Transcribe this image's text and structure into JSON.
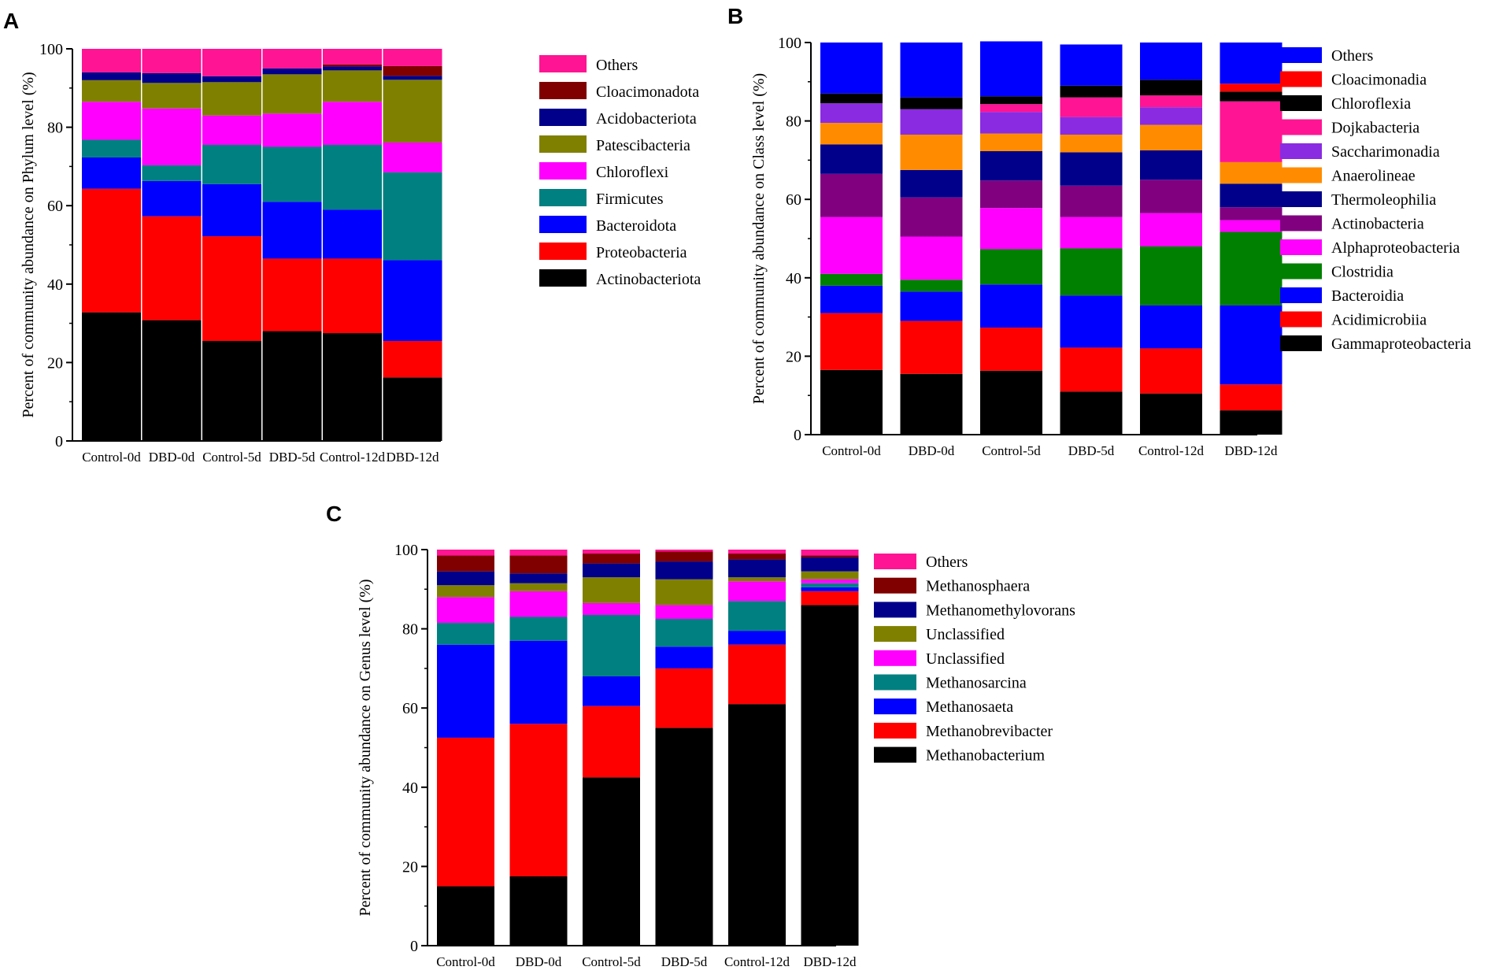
{
  "chart_data": [
    {
      "panel": "A",
      "type": "stacked-bar",
      "ylabel": "Percent of community abundance on Phylum level (%)",
      "ylim": [
        0,
        100
      ],
      "yticks": [
        0,
        20,
        40,
        60,
        80,
        100
      ],
      "categories": [
        "Control-0d",
        "DBD-0d",
        "Control-5d",
        "DBD-5d",
        "Control-12d",
        "DBD-12d"
      ],
      "series": [
        {
          "name": "Actinobacteriota",
          "color": "#000000",
          "values": [
            32.8,
            30.8,
            25.5,
            28.0,
            27.5,
            16.2
          ]
        },
        {
          "name": "Proteobacteria",
          "color": "#ff0000",
          "values": [
            31.5,
            26.5,
            26.7,
            18.5,
            19.0,
            9.3
          ]
        },
        {
          "name": "Bacteroidota",
          "color": "#0000ff",
          "values": [
            8.0,
            9.0,
            13.3,
            14.5,
            12.5,
            20.6
          ]
        },
        {
          "name": "Firmicutes",
          "color": "#008080",
          "values": [
            4.5,
            4.0,
            10.0,
            14.0,
            16.5,
            22.4
          ]
        },
        {
          "name": "Chloroflexi",
          "color": "#ff00ff",
          "values": [
            9.7,
            14.5,
            7.5,
            8.5,
            11.0,
            7.6
          ]
        },
        {
          "name": "Patescibacteria",
          "color": "#808000",
          "values": [
            5.5,
            6.5,
            8.5,
            10.0,
            8.0,
            16.0
          ]
        },
        {
          "name": "Acidobacteriota",
          "color": "#00008b",
          "values": [
            2.0,
            2.5,
            1.5,
            1.5,
            1.0,
            1.0
          ]
        },
        {
          "name": "Cloacimonadota",
          "color": "#800000",
          "values": [
            0.0,
            0.0,
            0.0,
            0.0,
            0.5,
            2.5
          ]
        },
        {
          "name": "Others",
          "color": "#ff1493",
          "values": [
            6.0,
            6.2,
            7.0,
            5.0,
            4.0,
            4.4
          ]
        }
      ]
    },
    {
      "panel": "B",
      "type": "stacked-bar",
      "ylabel": "Percent of community abundance on Class level (%)",
      "ylim": [
        0,
        100
      ],
      "yticks": [
        0,
        20,
        40,
        60,
        80,
        100
      ],
      "categories": [
        "Control-0d",
        "DBD-0d",
        "Control-5d",
        "DBD-5d",
        "Control-12d",
        "DBD-12d"
      ],
      "series": [
        {
          "name": "Gammaproteobacteria",
          "color": "#000000",
          "values": [
            16.5,
            15.5,
            16.3,
            11.0,
            10.5,
            6.2
          ]
        },
        {
          "name": "Acidimicrobiia",
          "color": "#ff0000",
          "values": [
            14.5,
            13.5,
            11.0,
            11.2,
            11.5,
            6.6
          ]
        },
        {
          "name": "Bacteroidia",
          "color": "#0000ff",
          "values": [
            7.0,
            7.5,
            11.0,
            13.3,
            11.0,
            20.2
          ]
        },
        {
          "name": "Clostridia",
          "color": "#008000",
          "values": [
            3.0,
            3.0,
            9.0,
            12.0,
            15.0,
            18.7
          ]
        },
        {
          "name": "Alphaproteobacteria",
          "color": "#ff00ff",
          "values": [
            14.5,
            11.0,
            10.5,
            8.0,
            8.5,
            3.0
          ]
        },
        {
          "name": "Actinobacteria",
          "color": "#800080",
          "values": [
            11.0,
            10.0,
            7.0,
            8.0,
            8.5,
            3.3
          ]
        },
        {
          "name": "Thermoleophilia",
          "color": "#00008b",
          "values": [
            7.5,
            7.0,
            7.5,
            8.5,
            7.5,
            6.0
          ]
        },
        {
          "name": "Anaerolineae",
          "color": "#ff8c00",
          "values": [
            5.5,
            9.0,
            4.5,
            4.5,
            6.5,
            5.5
          ]
        },
        {
          "name": "Saccharimonadia",
          "color": "#8a2be2",
          "values": [
            5.0,
            6.5,
            5.5,
            4.5,
            4.5,
            0.0
          ]
        },
        {
          "name": "Dojkabacteria",
          "color": "#ff1493",
          "values": [
            0.0,
            0.0,
            2.0,
            5.0,
            3.0,
            15.5
          ]
        },
        {
          "name": "Chloroflexia",
          "color": "#000000",
          "values": [
            2.5,
            3.0,
            2.0,
            3.0,
            4.0,
            2.5
          ]
        },
        {
          "name": "Cloacimonadia",
          "color": "#ff0000",
          "values": [
            0.0,
            0.0,
            0.0,
            0.0,
            0.0,
            2.0
          ]
        },
        {
          "name": "Others",
          "color": "#0000ff",
          "values": [
            13.0,
            14.0,
            14.0,
            10.5,
            9.5,
            10.5
          ]
        }
      ]
    },
    {
      "panel": "C",
      "type": "stacked-bar",
      "ylabel": "Percent of community abundance on Genus level (%)",
      "ylim": [
        0,
        100
      ],
      "yticks": [
        0,
        20,
        40,
        60,
        80,
        100
      ],
      "categories": [
        "Control-0d",
        "DBD-0d",
        "Control-5d",
        "DBD-5d",
        "Control-12d",
        "DBD-12d"
      ],
      "series": [
        {
          "name": "Methanobacterium",
          "color": "#000000",
          "values": [
            15.0,
            17.5,
            42.5,
            55.0,
            61.0,
            86.0
          ]
        },
        {
          "name": "Methanobrevibacter",
          "color": "#ff0000",
          "values": [
            37.5,
            38.5,
            18.0,
            15.0,
            15.0,
            3.5
          ]
        },
        {
          "name": "Methanosaeta",
          "color": "#0000ff",
          "values": [
            23.5,
            21.0,
            7.5,
            5.5,
            3.5,
            1.0
          ]
        },
        {
          "name": "Methanosarcina",
          "color": "#008080",
          "values": [
            5.5,
            6.0,
            15.5,
            7.0,
            7.5,
            1.0
          ]
        },
        {
          "name": "Unclassified",
          "color": "#ff00ff",
          "values": [
            6.5,
            6.5,
            3.0,
            3.5,
            5.0,
            1.0
          ]
        },
        {
          "name": "Unclassified",
          "color": "#808000",
          "values": [
            3.0,
            2.0,
            6.5,
            6.5,
            1.0,
            2.0
          ]
        },
        {
          "name": "Methanomethylovorans",
          "color": "#00008b",
          "values": [
            3.5,
            2.5,
            3.5,
            4.5,
            4.5,
            3.5
          ]
        },
        {
          "name": "Methanosphaera",
          "color": "#800000",
          "values": [
            4.0,
            4.5,
            2.5,
            2.5,
            1.5,
            0.5
          ]
        },
        {
          "name": "Others",
          "color": "#ff1493",
          "values": [
            1.5,
            1.5,
            1.0,
            0.5,
            1.0,
            1.5
          ]
        }
      ]
    }
  ]
}
